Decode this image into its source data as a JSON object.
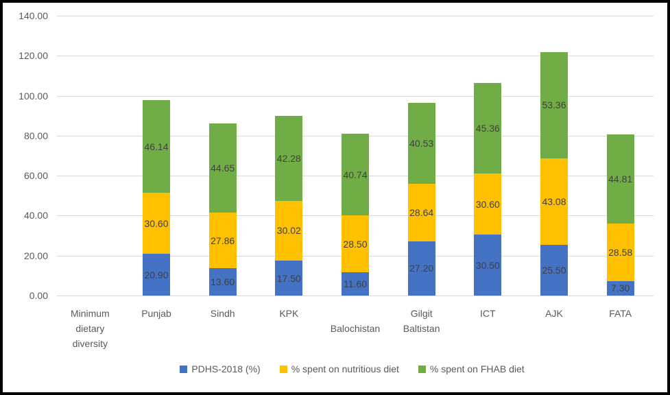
{
  "chart_data": {
    "type": "bar",
    "stacked": true,
    "title": "",
    "xlabel": "",
    "ylabel": "",
    "ylim": [
      0,
      140
    ],
    "ytick_step": 20,
    "ytick_decimals": 2,
    "grid": true,
    "legend_position": "bottom",
    "data_labels": true,
    "categories": [
      "Minimum dietary diversity",
      "Punjab",
      "Sindh",
      "KPK",
      "Balochistan",
      "Gilgit Baltistan",
      "ICT",
      "AJK",
      "FATA"
    ],
    "category_label_lines": [
      [
        "Minimum",
        "dietary",
        "diversity"
      ],
      [
        "Punjab"
      ],
      [
        "Sindh"
      ],
      [
        "KPK"
      ],
      [
        "Balochistan"
      ],
      [
        "Gilgit",
        "Baltistan"
      ],
      [
        "ICT"
      ],
      [
        "AJK"
      ],
      [
        "FATA"
      ]
    ],
    "category_label_row": [
      0,
      0,
      0,
      0,
      1,
      0,
      0,
      0,
      0
    ],
    "series": [
      {
        "name": "PDHS-2018 (%)",
        "color": "#4472C4",
        "values": [
          null,
          20.9,
          13.6,
          17.5,
          11.6,
          27.2,
          30.5,
          25.5,
          7.3
        ]
      },
      {
        "name": "% spent on nutritious diet",
        "color": "#FFC000",
        "values": [
          null,
          30.6,
          27.86,
          30.02,
          28.5,
          28.64,
          30.6,
          43.08,
          28.58
        ]
      },
      {
        "name": "% spent on FHAB diet",
        "color": "#70AD47",
        "values": [
          null,
          46.14,
          44.65,
          42.28,
          40.74,
          40.53,
          45.36,
          53.36,
          44.81
        ]
      }
    ]
  },
  "colors": {
    "background": "#FFFFFF",
    "border": "#000000",
    "gridline": "#D9D9D9",
    "axis_text": "#595959",
    "data_label_text": "#404040"
  }
}
